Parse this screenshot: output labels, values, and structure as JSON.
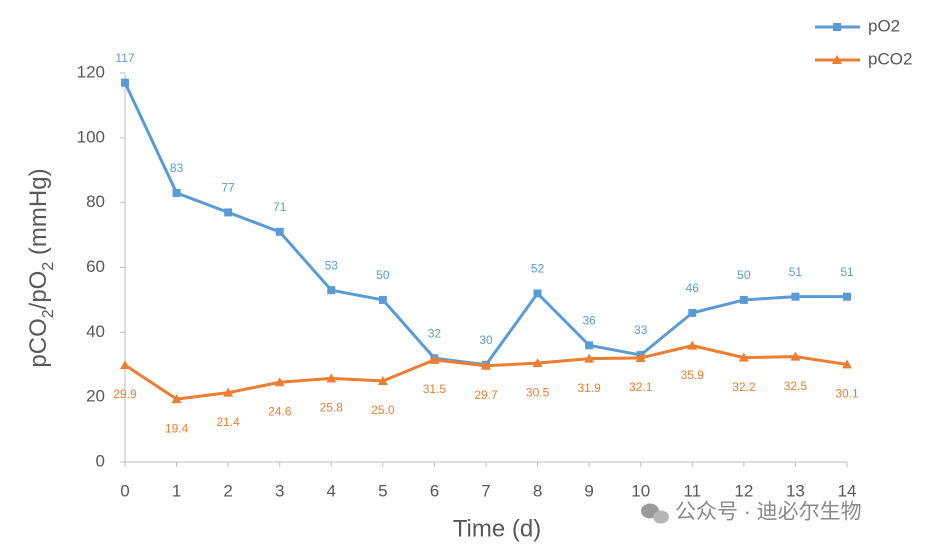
{
  "chart_data": {
    "type": "line",
    "x_label": "Time (d)",
    "y_label": "pCO2/pO2 (mmHg)",
    "x": [
      0,
      1,
      2,
      3,
      4,
      5,
      6,
      7,
      8,
      9,
      10,
      11,
      12,
      13,
      14
    ],
    "xlim": [
      0,
      14
    ],
    "xticks": [
      0,
      1,
      2,
      3,
      4,
      5,
      6,
      7,
      8,
      9,
      10,
      11,
      12,
      13,
      14
    ],
    "ylim": [
      0,
      120
    ],
    "yticks": [
      0,
      20,
      40,
      60,
      80,
      100,
      120
    ],
    "grid": false,
    "legend": "top-right",
    "series": [
      {
        "name": "pO2",
        "color": "#5b9bd5",
        "marker": "square",
        "values": [
          117,
          83,
          77,
          71,
          53,
          50,
          32,
          30,
          52,
          36,
          33,
          46,
          50,
          51,
          51
        ]
      },
      {
        "name": "pCO2",
        "color": "#ed7d31",
        "marker": "triangle",
        "values": [
          29.9,
          19.4,
          21.4,
          24.6,
          25.8,
          25.0,
          31.5,
          29.7,
          30.5,
          31.9,
          32.1,
          35.9,
          32.2,
          32.5,
          30.1
        ],
        "value_labels": [
          "29.9",
          "19.4",
          "21.4",
          "24.6",
          "25.8",
          "25.0",
          "31.5",
          "29.7",
          "30.5",
          "31.9",
          "32.1",
          "35.9",
          "32.2",
          "32.5",
          "30.1"
        ]
      }
    ],
    "watermark": "公众号 · 迪必尔生物"
  }
}
